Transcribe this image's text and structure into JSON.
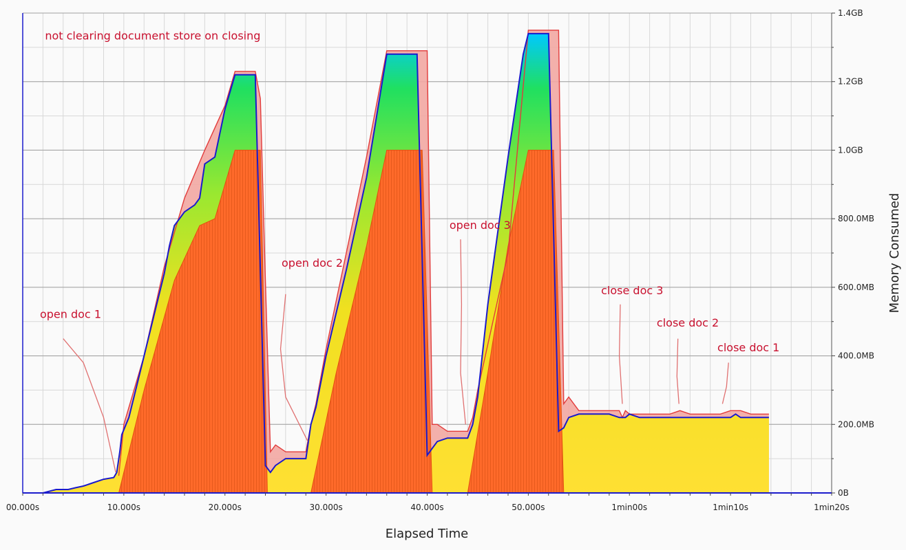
{
  "chart_data": {
    "type": "area",
    "xlabel": "Elapsed Time",
    "ylabel": "Memory Consumed",
    "xlim": [
      0,
      80
    ],
    "ylim": [
      0,
      1.4
    ],
    "x_unit": "s",
    "y_unit": "GB",
    "grid": true,
    "x_ticks": [
      {
        "value": 0,
        "label": "00.000s"
      },
      {
        "value": 10,
        "label": "10.000s"
      },
      {
        "value": 20,
        "label": "20.000s"
      },
      {
        "value": 30,
        "label": "30.000s"
      },
      {
        "value": 40,
        "label": "40.000s"
      },
      {
        "value": 50,
        "label": "50.000s"
      },
      {
        "value": 60,
        "label": "1min00s"
      },
      {
        "value": 70,
        "label": "1min10s"
      },
      {
        "value": 80,
        "label": "1min20s"
      }
    ],
    "y_ticks": [
      {
        "value": 0,
        "label": "0B"
      },
      {
        "value": 0.2,
        "label": "200.0MB"
      },
      {
        "value": 0.4,
        "label": "400.0MB"
      },
      {
        "value": 0.6,
        "label": "600.0MB"
      },
      {
        "value": 0.8,
        "label": "800.0MB"
      },
      {
        "value": 1.0,
        "label": "1.0GB"
      },
      {
        "value": 1.2,
        "label": "1.2GB"
      },
      {
        "value": 1.4,
        "label": "1.4GB"
      }
    ],
    "series": [
      {
        "role": "total",
        "color": "#1a1acc",
        "x": [
          0,
          2,
          3.3,
          4.5,
          5.2,
          6,
          6.5,
          7,
          8,
          9,
          9.3,
          9.6,
          9.8,
          10.5,
          11,
          12,
          13,
          14,
          14.5,
          15,
          16,
          17,
          17.5,
          18,
          19,
          20,
          21,
          22,
          23,
          24,
          24.5,
          25,
          26,
          27,
          28,
          28.5,
          29,
          30,
          32,
          34,
          36,
          37,
          38,
          39,
          40,
          40.5,
          41,
          42,
          43,
          44,
          44.5,
          45,
          46,
          48,
          49.5,
          50,
          51,
          52,
          53,
          53.5,
          54,
          55,
          56,
          57,
          58,
          59,
          59.3,
          59.6,
          60,
          61,
          62,
          63,
          64,
          65,
          66,
          67,
          68,
          69,
          70,
          70.5,
          71,
          72,
          73,
          73.8
        ],
        "y": [
          0,
          0,
          0.01,
          0.01,
          0.015,
          0.02,
          0.025,
          0.03,
          0.04,
          0.045,
          0.06,
          0.12,
          0.17,
          0.22,
          0.28,
          0.4,
          0.52,
          0.64,
          0.72,
          0.78,
          0.82,
          0.84,
          0.86,
          0.96,
          0.98,
          1.12,
          1.22,
          1.22,
          1.22,
          0.08,
          0.06,
          0.08,
          0.1,
          0.1,
          0.1,
          0.2,
          0.25,
          0.4,
          0.65,
          0.92,
          1.28,
          1.28,
          1.28,
          1.28,
          0.11,
          0.13,
          0.15,
          0.16,
          0.16,
          0.16,
          0.2,
          0.28,
          0.55,
          0.98,
          1.28,
          1.34,
          1.34,
          1.34,
          0.18,
          0.19,
          0.22,
          0.23,
          0.23,
          0.23,
          0.23,
          0.22,
          0.22,
          0.22,
          0.23,
          0.22,
          0.22,
          0.22,
          0.22,
          0.22,
          0.22,
          0.22,
          0.22,
          0.22,
          0.22,
          0.23,
          0.22,
          0.22,
          0.22,
          0.22
        ]
      },
      {
        "role": "peak",
        "color": "#e23b3b",
        "x": [
          9.5,
          10,
          12,
          14,
          16,
          18,
          20,
          21,
          23,
          23.5,
          24,
          24.5,
          25,
          26,
          27,
          28,
          28.5,
          29,
          30,
          32,
          34,
          36,
          37,
          39,
          40,
          40.5,
          41,
          42,
          43,
          44,
          44.5,
          45,
          48,
          50,
          52,
          53,
          53.5,
          54,
          55,
          56,
          57,
          58,
          59,
          59.3,
          59.6,
          60,
          64,
          65,
          66,
          69,
          70,
          70.5,
          71,
          72,
          73.8
        ],
        "y": [
          0.05,
          0.2,
          0.4,
          0.66,
          0.86,
          1.0,
          1.13,
          1.23,
          1.23,
          1.15,
          0.62,
          0.12,
          0.14,
          0.12,
          0.12,
          0.12,
          0.2,
          0.26,
          0.42,
          0.7,
          0.98,
          1.29,
          1.29,
          1.29,
          1.29,
          0.2,
          0.2,
          0.18,
          0.18,
          0.18,
          0.22,
          0.3,
          0.7,
          1.35,
          1.35,
          1.35,
          0.26,
          0.28,
          0.24,
          0.24,
          0.24,
          0.24,
          0.24,
          0.22,
          0.24,
          0.23,
          0.23,
          0.24,
          0.23,
          0.23,
          0.24,
          0.24,
          0.24,
          0.23,
          0.23
        ]
      },
      {
        "role": "orange-base",
        "color": "#ff6a2a",
        "segments": [
          {
            "x": [
              9.5,
              12,
              15,
              17.5,
              19,
              21,
              23.5,
              24.2
            ],
            "y": [
              0,
              0.3,
              0.62,
              0.78,
              0.8,
              1.0,
              1.0,
              0
            ]
          },
          {
            "x": [
              28.5,
              31,
              34,
              36,
              39.5,
              40.5
            ],
            "y": [
              0,
              0.35,
              0.72,
              1.0,
              1.0,
              0
            ]
          },
          {
            "x": [
              44,
              46,
              48,
              50,
              52.5,
              53.5
            ],
            "y": [
              0,
              0.35,
              0.72,
              1.0,
              1.0,
              0
            ]
          }
        ]
      }
    ],
    "annotations": [
      {
        "text": "not clearing document store on closing",
        "x": 2.2,
        "y": 1.323
      },
      {
        "text": "open doc 1",
        "x": 1.7,
        "y": 0.51,
        "pointer_x": [
          4,
          6,
          8,
          9.2
        ],
        "pointer_y": [
          0.45,
          0.38,
          0.22,
          0.06
        ]
      },
      {
        "text": "open doc 2",
        "x": 25.6,
        "y": 0.66,
        "pointer_x": [
          26,
          25.5,
          26,
          28.2
        ],
        "pointer_y": [
          0.58,
          0.42,
          0.28,
          0.15
        ]
      },
      {
        "text": "open doc 3",
        "x": 42.2,
        "y": 0.77,
        "pointer_x": [
          43.3,
          43.4,
          43.3,
          43.8
        ],
        "pointer_y": [
          0.74,
          0.55,
          0.35,
          0.2
        ]
      },
      {
        "text": "close doc 3",
        "x": 57.2,
        "y": 0.58,
        "pointer_x": [
          59.1,
          59,
          59.3
        ],
        "pointer_y": [
          0.55,
          0.4,
          0.26
        ]
      },
      {
        "text": "close doc 2",
        "x": 62.7,
        "y": 0.485,
        "pointer_x": [
          64.8,
          64.7,
          64.9
        ],
        "pointer_y": [
          0.45,
          0.34,
          0.26
        ]
      },
      {
        "text": "close doc 1",
        "x": 68.7,
        "y": 0.413,
        "pointer_x": [
          69.8,
          69.6,
          69.2
        ],
        "pointer_y": [
          0.38,
          0.31,
          0.26
        ]
      }
    ]
  }
}
